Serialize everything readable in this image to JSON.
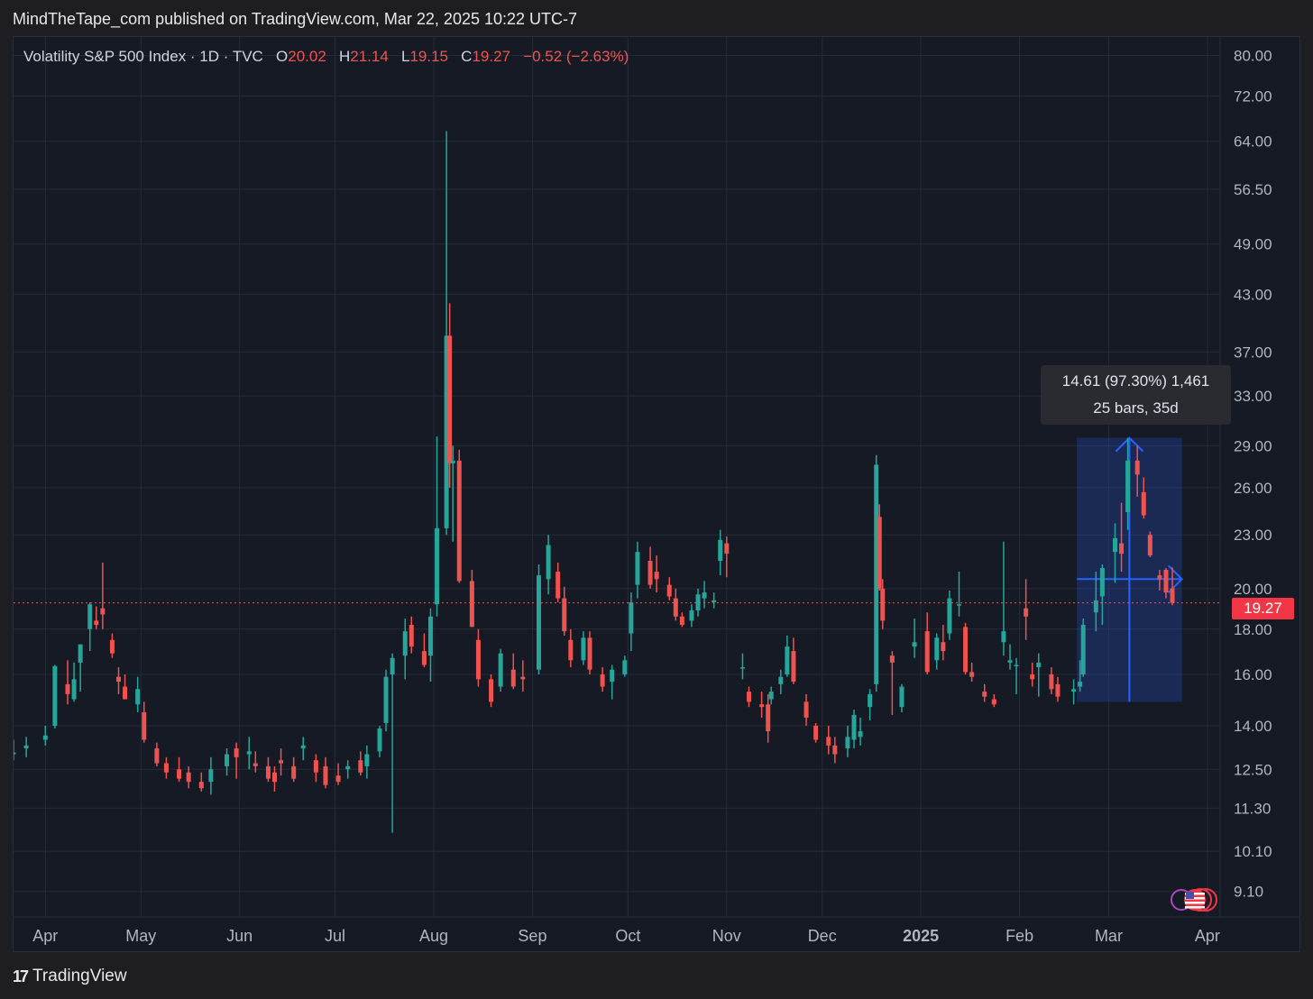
{
  "header": {
    "text": "MindTheTape_com published on TradingView.com, Mar 22, 2025 10:22 UTC-7"
  },
  "legend": {
    "symbol": "Volatility S&P 500 Index · 1D · TVC",
    "open_label": "O",
    "open": "20.02",
    "high_label": "H",
    "high": "21.14",
    "low_label": "L",
    "low": "19.15",
    "close_label": "C",
    "close": "19.27",
    "change": "−0.52 (−2.63%)"
  },
  "measure_tooltip": {
    "line1": "14.61 (97.30%) 1,461",
    "line2": "25 bars, 35d"
  },
  "last_price_tag": "19.27",
  "footer": {
    "logo": "17",
    "brand": "TradingView"
  },
  "colors": {
    "up": "#26a69a",
    "down": "#ef5350",
    "background": "#161a25",
    "grid": "#262b38",
    "measure": "#2962ff"
  },
  "icons": [
    "us-flag-icon",
    "events-icon"
  ],
  "chart_data": {
    "type": "candlestick",
    "title": "Volatility S&P 500 Index · 1D · TVC",
    "y_scale": "log",
    "ylim": [
      8.8,
      82
    ],
    "y_ticks": [
      "80.00",
      "72.00",
      "64.00",
      "56.50",
      "49.00",
      "43.00",
      "37.00",
      "33.00",
      "29.00",
      "26.00",
      "23.00",
      "20.00",
      "18.00",
      "16.00",
      "14.00",
      "12.50",
      "11.30",
      "10.10",
      "9.10"
    ],
    "x_ticks": [
      "Apr",
      "May",
      "Jun",
      "Jul",
      "Aug",
      "Sep",
      "Oct",
      "Nov",
      "Dec",
      "2025",
      "Feb",
      "Mar",
      "Apr"
    ],
    "x_tick_dates": [
      "2024-04-01",
      "2024-05-01",
      "2024-06-01",
      "2024-07-01",
      "2024-08-01",
      "2024-09-01",
      "2024-10-01",
      "2024-11-01",
      "2024-12-01",
      "2025-01-01",
      "2025-02-01",
      "2025-03-01",
      "2025-04-01"
    ],
    "x_range": [
      "2024-03-22",
      "2025-04-05"
    ],
    "last_close": 19.27,
    "ohlc": [
      [
        "2024-03-22",
        13.0,
        13.5,
        12.8,
        13.06
      ],
      [
        "2024-03-26",
        13.2,
        13.6,
        12.9,
        13.3
      ],
      [
        "2024-04-01",
        13.5,
        14.0,
        13.3,
        13.65
      ],
      [
        "2024-04-04",
        14.0,
        16.4,
        13.9,
        16.35
      ],
      [
        "2024-04-08",
        15.6,
        16.6,
        14.8,
        15.2
      ],
      [
        "2024-04-10",
        15.0,
        16.5,
        14.9,
        15.8
      ],
      [
        "2024-04-12",
        16.5,
        17.3,
        15.3,
        17.3
      ],
      [
        "2024-04-15",
        18.0,
        19.3,
        17.0,
        19.2
      ],
      [
        "2024-04-17",
        18.4,
        19.1,
        18.0,
        18.2
      ],
      [
        "2024-04-19",
        19.0,
        21.4,
        18.0,
        18.7
      ],
      [
        "2024-04-22",
        17.5,
        17.8,
        16.7,
        16.9
      ],
      [
        "2024-04-24",
        15.9,
        16.3,
        15.2,
        15.7
      ],
      [
        "2024-04-26",
        15.5,
        16.0,
        15.0,
        15.0
      ],
      [
        "2024-04-30",
        14.8,
        15.9,
        14.5,
        15.4
      ],
      [
        "2024-05-02",
        14.5,
        14.9,
        13.4,
        13.5
      ],
      [
        "2024-05-06",
        13.2,
        13.4,
        12.6,
        12.7
      ],
      [
        "2024-05-09",
        12.7,
        12.9,
        12.2,
        12.4
      ],
      [
        "2024-05-13",
        12.5,
        12.9,
        12.1,
        12.2
      ],
      [
        "2024-05-16",
        12.4,
        12.6,
        11.9,
        12.1
      ],
      [
        "2024-05-20",
        12.1,
        12.4,
        11.8,
        11.9
      ],
      [
        "2024-05-23",
        12.1,
        12.9,
        11.7,
        12.5
      ],
      [
        "2024-05-28",
        12.6,
        13.2,
        12.3,
        13.0
      ],
      [
        "2024-05-31",
        13.2,
        13.4,
        12.2,
        12.9
      ],
      [
        "2024-06-04",
        13.0,
        13.6,
        12.5,
        13.1
      ],
      [
        "2024-06-06",
        12.7,
        13.1,
        12.4,
        12.6
      ],
      [
        "2024-06-10",
        12.6,
        12.9,
        12.1,
        12.2
      ],
      [
        "2024-06-12",
        12.4,
        12.6,
        11.8,
        12.1
      ],
      [
        "2024-06-14",
        12.8,
        13.2,
        12.3,
        12.7
      ],
      [
        "2024-06-18",
        12.6,
        12.9,
        12.1,
        12.2
      ],
      [
        "2024-06-21",
        13.2,
        13.6,
        12.8,
        13.3
      ],
      [
        "2024-06-25",
        12.8,
        13.0,
        12.1,
        12.4
      ],
      [
        "2024-06-28",
        12.6,
        12.9,
        11.9,
        12.0
      ],
      [
        "2024-07-02",
        12.3,
        12.7,
        12.0,
        12.1
      ],
      [
        "2024-07-05",
        12.5,
        12.8,
        12.2,
        12.6
      ],
      [
        "2024-07-09",
        12.8,
        13.1,
        12.3,
        12.4
      ],
      [
        "2024-07-11",
        12.6,
        13.3,
        12.2,
        13.0
      ],
      [
        "2024-07-15",
        13.1,
        14.0,
        12.9,
        13.9
      ],
      [
        "2024-07-17",
        14.1,
        16.2,
        13.8,
        15.9
      ],
      [
        "2024-07-19",
        16.0,
        16.9,
        10.6,
        16.7
      ],
      [
        "2024-07-23",
        16.8,
        18.5,
        15.8,
        17.9
      ],
      [
        "2024-07-25",
        18.2,
        18.6,
        16.9,
        17.2
      ],
      [
        "2024-07-29",
        17.0,
        17.8,
        16.3,
        16.4
      ],
      [
        "2024-07-31",
        16.8,
        19.0,
        15.7,
        18.6
      ],
      [
        "2024-08-02",
        19.2,
        29.7,
        18.6,
        23.4
      ],
      [
        "2024-08-05",
        23.4,
        65.7,
        23.0,
        38.6
      ],
      [
        "2024-08-06",
        38.6,
        42.0,
        26.0,
        27.7
      ],
      [
        "2024-08-07",
        27.7,
        29.0,
        22.6,
        27.9
      ],
      [
        "2024-08-09",
        27.9,
        28.7,
        20.3,
        20.4
      ],
      [
        "2024-08-13",
        20.4,
        21.0,
        18.3,
        18.1
      ],
      [
        "2024-08-15",
        17.5,
        18.0,
        15.5,
        15.8
      ],
      [
        "2024-08-19",
        15.8,
        16.0,
        14.7,
        14.9
      ],
      [
        "2024-08-22",
        15.5,
        17.1,
        15.3,
        16.9
      ],
      [
        "2024-08-26",
        16.2,
        16.9,
        15.4,
        15.5
      ],
      [
        "2024-08-29",
        15.9,
        16.6,
        15.3,
        15.8
      ],
      [
        "2024-09-03",
        16.2,
        21.3,
        16.0,
        20.7
      ],
      [
        "2024-09-06",
        20.5,
        23.0,
        19.7,
        22.4
      ],
      [
        "2024-09-09",
        20.9,
        21.4,
        19.3,
        19.5
      ],
      [
        "2024-09-11",
        19.5,
        20.1,
        17.7,
        17.9
      ],
      [
        "2024-09-13",
        17.5,
        18.0,
        16.3,
        16.6
      ],
      [
        "2024-09-17",
        16.6,
        17.9,
        16.4,
        17.6
      ],
      [
        "2024-09-19",
        17.6,
        17.9,
        16.0,
        16.2
      ],
      [
        "2024-09-23",
        16.0,
        16.3,
        15.3,
        15.5
      ],
      [
        "2024-09-26",
        15.7,
        16.4,
        15.0,
        16.2
      ],
      [
        "2024-09-30",
        16.0,
        16.8,
        15.9,
        16.6
      ],
      [
        "2024-10-02",
        17.8,
        19.8,
        17.0,
        19.3
      ],
      [
        "2024-10-04",
        20.2,
        22.6,
        19.5,
        22.0
      ],
      [
        "2024-10-08",
        21.5,
        22.3,
        20.0,
        20.2
      ],
      [
        "2024-10-10",
        20.9,
        21.8,
        19.8,
        20.5
      ],
      [
        "2024-10-14",
        20.2,
        20.6,
        19.4,
        19.6
      ],
      [
        "2024-10-16",
        19.5,
        20.0,
        18.4,
        18.6
      ],
      [
        "2024-10-18",
        18.6,
        18.8,
        18.1,
        18.2
      ],
      [
        "2024-10-21",
        18.4,
        19.2,
        18.1,
        18.9
      ],
      [
        "2024-10-23",
        18.9,
        20.0,
        18.6,
        19.7
      ],
      [
        "2024-10-25",
        19.5,
        20.4,
        19.0,
        19.8
      ],
      [
        "2024-10-28",
        19.3,
        19.8,
        19.0,
        19.4
      ],
      [
        "2024-10-30",
        21.5,
        23.3,
        20.7,
        22.7
      ],
      [
        "2024-11-01",
        22.5,
        22.9,
        20.6,
        21.9
      ],
      [
        "2024-11-06",
        16.3,
        16.9,
        15.8,
        16.3
      ],
      [
        "2024-11-08",
        15.3,
        15.5,
        14.7,
        14.9
      ],
      [
        "2024-11-12",
        14.8,
        15.3,
        14.3,
        14.7
      ],
      [
        "2024-11-14",
        14.8,
        15.2,
        13.4,
        13.8
      ],
      [
        "2024-11-15",
        15.0,
        15.5,
        14.8,
        15.3
      ],
      [
        "2024-11-18",
        15.6,
        16.2,
        15.2,
        15.9
      ],
      [
        "2024-11-20",
        16.0,
        17.7,
        15.9,
        17.2
      ],
      [
        "2024-11-22",
        17.0,
        17.6,
        15.6,
        15.7
      ],
      [
        "2024-11-26",
        14.9,
        15.2,
        14.0,
        14.3
      ],
      [
        "2024-11-29",
        14.0,
        14.1,
        13.4,
        13.5
      ],
      [
        "2024-12-03",
        13.6,
        14.0,
        13.0,
        13.3
      ],
      [
        "2024-12-05",
        13.3,
        13.6,
        12.7,
        13.0
      ],
      [
        "2024-12-09",
        13.2,
        14.0,
        12.9,
        13.6
      ],
      [
        "2024-12-11",
        13.5,
        14.6,
        13.2,
        14.4
      ],
      [
        "2024-12-13",
        13.6,
        14.3,
        13.3,
        13.8
      ],
      [
        "2024-12-16",
        14.7,
        15.4,
        14.2,
        15.2
      ],
      [
        "2024-12-18",
        15.6,
        28.3,
        15.3,
        27.6
      ],
      [
        "2024-12-19",
        24.1,
        24.9,
        19.9,
        20.0
      ],
      [
        "2024-12-20",
        20.0,
        20.5,
        18.0,
        18.4
      ],
      [
        "2024-12-23",
        16.8,
        17.0,
        14.4,
        16.5
      ],
      [
        "2024-12-26",
        14.7,
        15.6,
        14.5,
        15.5
      ],
      [
        "2024-12-30",
        17.2,
        18.5,
        16.7,
        17.4
      ],
      [
        "2025-01-03",
        17.9,
        18.8,
        16.0,
        16.1
      ],
      [
        "2025-01-06",
        16.6,
        17.8,
        16.2,
        17.6
      ],
      [
        "2025-01-08",
        17.4,
        18.2,
        16.6,
        17.0
      ],
      [
        "2025-01-10",
        17.8,
        19.9,
        17.5,
        19.5
      ],
      [
        "2025-01-13",
        19.2,
        20.9,
        18.6,
        19.2
      ],
      [
        "2025-01-15",
        18.1,
        18.3,
        16.0,
        16.1
      ],
      [
        "2025-01-17",
        16.1,
        16.5,
        15.7,
        15.9
      ],
      [
        "2025-01-21",
        15.3,
        15.6,
        14.9,
        15.1
      ],
      [
        "2025-01-24",
        15.0,
        15.2,
        14.7,
        14.8
      ],
      [
        "2025-01-27",
        17.4,
        22.6,
        16.8,
        17.9
      ],
      [
        "2025-01-29",
        16.5,
        17.3,
        16.2,
        16.6
      ],
      [
        "2025-01-31",
        16.4,
        16.7,
        15.2,
        16.4
      ],
      [
        "2025-02-03",
        19.0,
        20.5,
        17.5,
        18.6
      ],
      [
        "2025-02-05",
        16.0,
        16.5,
        15.5,
        15.8
      ],
      [
        "2025-02-07",
        16.3,
        16.9,
        15.1,
        16.5
      ],
      [
        "2025-02-11",
        16.0,
        16.3,
        15.2,
        15.4
      ],
      [
        "2025-02-13",
        15.6,
        15.9,
        14.9,
        15.1
      ],
      [
        "2025-02-18",
        15.3,
        15.8,
        14.8,
        15.4
      ],
      [
        "2025-02-20",
        15.5,
        16.6,
        15.3,
        15.7
      ],
      [
        "2025-02-21",
        16.0,
        18.5,
        15.9,
        18.2
      ],
      [
        "2025-02-25",
        18.8,
        20.9,
        17.9,
        19.4
      ],
      [
        "2025-02-27",
        19.6,
        21.3,
        18.2,
        21.1
      ],
      [
        "2025-03-03",
        22.0,
        23.7,
        20.3,
        22.8
      ],
      [
        "2025-03-05",
        22.5,
        25.0,
        20.9,
        21.9
      ],
      [
        "2025-03-07",
        24.4,
        29.6,
        23.3,
        27.9
      ],
      [
        "2025-03-10",
        27.9,
        29.0,
        25.4,
        26.9
      ],
      [
        "2025-03-12",
        25.7,
        26.7,
        24.0,
        24.2
      ],
      [
        "2025-03-14",
        23.0,
        23.2,
        21.7,
        21.8
      ],
      [
        "2025-03-17",
        20.7,
        21.0,
        19.9,
        20.5
      ],
      [
        "2025-03-19",
        21.0,
        21.1,
        19.5,
        19.8
      ],
      [
        "2025-03-21",
        20.02,
        21.14,
        19.15,
        19.27
      ]
    ],
    "measure_box": {
      "from_date": "2025-02-19",
      "to_date": "2025-03-24",
      "low": 14.9,
      "high": 29.6,
      "pivot": 20.5
    }
  }
}
